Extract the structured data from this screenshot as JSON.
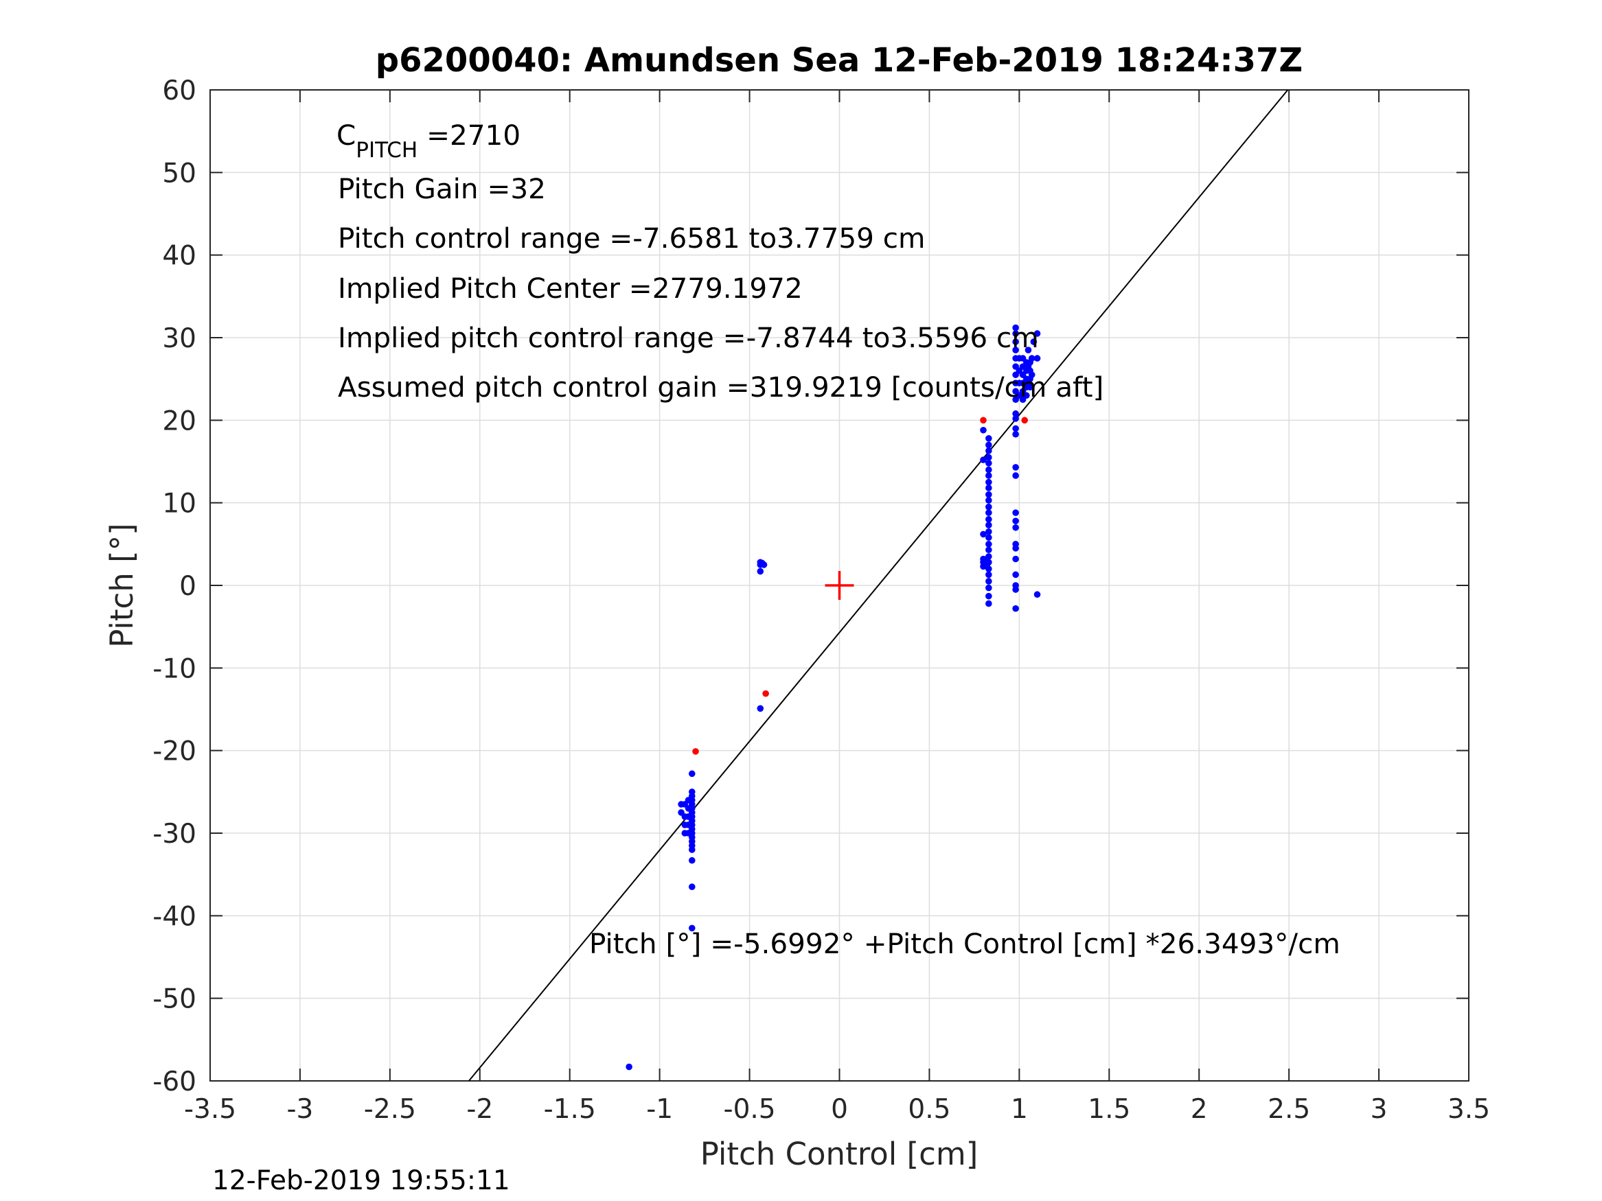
{
  "chart_data": {
    "type": "scatter",
    "title": "p6200040: Amundsen Sea 12-Feb-2019 18:24:37Z",
    "xlabel": "Pitch Control [cm]",
    "ylabel": "Pitch [°]",
    "xlim": [
      -3.5,
      3.5
    ],
    "ylim": [
      -60,
      60
    ],
    "grid": true,
    "x_ticks": [
      "-3.5",
      "-3",
      "-2.5",
      "-2",
      "-1.5",
      "-1",
      "-0.5",
      "0",
      "0.5",
      "1",
      "1.5",
      "2",
      "2.5",
      "3",
      "3.5"
    ],
    "y_ticks": [
      "60",
      "50",
      "40",
      "30",
      "20",
      "10",
      "0",
      "-10",
      "-20",
      "-30",
      "-40",
      "-50",
      "-60"
    ],
    "colors": {
      "series_blue": "#0000ff",
      "series_red": "#ff0000",
      "fit_line": "#000000"
    },
    "fit_line": {
      "intercept": -5.6992,
      "slope": 26.3493
    },
    "center_marker": {
      "x": 0,
      "y": 0,
      "symbol": "+",
      "color": "#ff0000"
    },
    "series": [
      {
        "color": "#0000ff",
        "points": [
          [
            -1.17,
            -58.3
          ],
          [
            -0.82,
            -41.5
          ],
          [
            -0.82,
            -36.5
          ],
          [
            -0.82,
            -33.3
          ],
          [
            -0.82,
            -32.0
          ],
          [
            -0.82,
            -31.5
          ],
          [
            -0.82,
            -31.0
          ],
          [
            -0.82,
            -30.5
          ],
          [
            -0.82,
            -30.0
          ],
          [
            -0.82,
            -29.5
          ],
          [
            -0.82,
            -29.0
          ],
          [
            -0.82,
            -28.5
          ],
          [
            -0.82,
            -28.0
          ],
          [
            -0.82,
            -27.5
          ],
          [
            -0.82,
            -27.0
          ],
          [
            -0.82,
            -26.5
          ],
          [
            -0.82,
            -26.0
          ],
          [
            -0.82,
            -25.5
          ],
          [
            -0.82,
            -25.0
          ],
          [
            -0.82,
            -22.8
          ],
          [
            -0.84,
            -30.0
          ],
          [
            -0.84,
            -29.0
          ],
          [
            -0.84,
            -28.0
          ],
          [
            -0.84,
            -27.0
          ],
          [
            -0.84,
            -26.0
          ],
          [
            -0.86,
            -30.0
          ],
          [
            -0.86,
            -29.0
          ],
          [
            -0.86,
            -28.0
          ],
          [
            -0.86,
            -26.5
          ],
          [
            -0.88,
            -27.5
          ],
          [
            -0.88,
            -26.5
          ],
          [
            -0.44,
            -14.9
          ],
          [
            -0.44,
            1.7
          ],
          [
            -0.44,
            2.5
          ],
          [
            -0.44,
            2.8
          ],
          [
            -0.43,
            2.7
          ],
          [
            -0.42,
            2.5
          ],
          [
            0.8,
            18.8
          ],
          [
            0.8,
            15.2
          ],
          [
            0.8,
            6.2
          ],
          [
            0.8,
            3.2
          ],
          [
            0.8,
            2.8
          ],
          [
            0.8,
            2.3
          ],
          [
            0.81,
            3.0
          ],
          [
            0.81,
            2.5
          ],
          [
            0.82,
            3.2
          ],
          [
            0.82,
            2.4
          ],
          [
            0.83,
            -2.2
          ],
          [
            0.83,
            -1.3
          ],
          [
            0.83,
            -0.3
          ],
          [
            0.83,
            0.5
          ],
          [
            0.83,
            1.3
          ],
          [
            0.83,
            2.0
          ],
          [
            0.83,
            2.8
          ],
          [
            0.83,
            3.5
          ],
          [
            0.83,
            4.3
          ],
          [
            0.83,
            5.0
          ],
          [
            0.83,
            5.8
          ],
          [
            0.83,
            6.5
          ],
          [
            0.83,
            7.3
          ],
          [
            0.83,
            8.0
          ],
          [
            0.83,
            8.8
          ],
          [
            0.83,
            9.5
          ],
          [
            0.83,
            10.3
          ],
          [
            0.83,
            11.0
          ],
          [
            0.83,
            11.8
          ],
          [
            0.83,
            12.5
          ],
          [
            0.83,
            13.3
          ],
          [
            0.83,
            14.0
          ],
          [
            0.83,
            14.8
          ],
          [
            0.83,
            15.5
          ],
          [
            0.83,
            16.3
          ],
          [
            0.83,
            17.0
          ],
          [
            0.83,
            17.8
          ],
          [
            0.98,
            -2.8
          ],
          [
            0.98,
            -0.5
          ],
          [
            0.98,
            0.0
          ],
          [
            0.98,
            1.3
          ],
          [
            0.98,
            3.2
          ],
          [
            0.98,
            4.5
          ],
          [
            0.98,
            5.0
          ],
          [
            0.98,
            7.0
          ],
          [
            0.98,
            7.8
          ],
          [
            0.98,
            8.8
          ],
          [
            0.98,
            13.3
          ],
          [
            0.98,
            14.3
          ],
          [
            0.98,
            18.3
          ],
          [
            0.98,
            19.0
          ],
          [
            0.98,
            20.2
          ],
          [
            0.98,
            20.8
          ],
          [
            0.98,
            22.5
          ],
          [
            0.98,
            23.5
          ],
          [
            0.98,
            24.5
          ],
          [
            0.98,
            25.5
          ],
          [
            0.98,
            26.5
          ],
          [
            0.98,
            27.5
          ],
          [
            0.98,
            28.5
          ],
          [
            0.98,
            29.5
          ],
          [
            0.98,
            30.5
          ],
          [
            0.98,
            31.2
          ],
          [
            1.0,
            23.0
          ],
          [
            1.0,
            24.5
          ],
          [
            1.0,
            26.0
          ],
          [
            1.0,
            27.5
          ],
          [
            1.02,
            22.5
          ],
          [
            1.02,
            23.5
          ],
          [
            1.02,
            24.5
          ],
          [
            1.02,
            25.5
          ],
          [
            1.02,
            26.5
          ],
          [
            1.02,
            27.5
          ],
          [
            1.04,
            23.0
          ],
          [
            1.04,
            24.0
          ],
          [
            1.04,
            25.0
          ],
          [
            1.04,
            26.0
          ],
          [
            1.04,
            27.0
          ],
          [
            1.05,
            24.5
          ],
          [
            1.05,
            26.5
          ],
          [
            1.05,
            28.5
          ],
          [
            1.06,
            24.0
          ],
          [
            1.06,
            25.0
          ],
          [
            1.06,
            26.0
          ],
          [
            1.06,
            27.0
          ],
          [
            1.07,
            25.5
          ],
          [
            1.07,
            27.5
          ],
          [
            1.08,
            29.5
          ],
          [
            1.1,
            27.5
          ],
          [
            1.1,
            30.5
          ],
          [
            1.1,
            -1.1
          ]
        ]
      },
      {
        "color": "#ff0000",
        "points": [
          [
            -0.8,
            -20.1
          ],
          [
            -0.41,
            -13.1
          ],
          [
            0.8,
            20.0
          ],
          [
            1.03,
            20.0
          ]
        ]
      }
    ],
    "annotations": {
      "c_pitch_label": "C",
      "c_pitch_sub": "PITCH",
      "c_pitch_value": " =2710",
      "pitch_gain": "Pitch Gain =32",
      "pitch_control_range": "Pitch control range =-7.6581 to3.7759 cm",
      "implied_pitch_center": "Implied Pitch Center =2779.1972",
      "implied_pitch_control_range": "Implied pitch control range =-7.8744 to3.5596 cm",
      "assumed_gain": "Assumed pitch control gain =319.9219 [counts/cm aft]",
      "fit_equation": "Pitch [°] =-5.6992° +Pitch Control [cm] *26.3493°/cm"
    },
    "footer": "12-Feb-2019 19:55:11"
  }
}
